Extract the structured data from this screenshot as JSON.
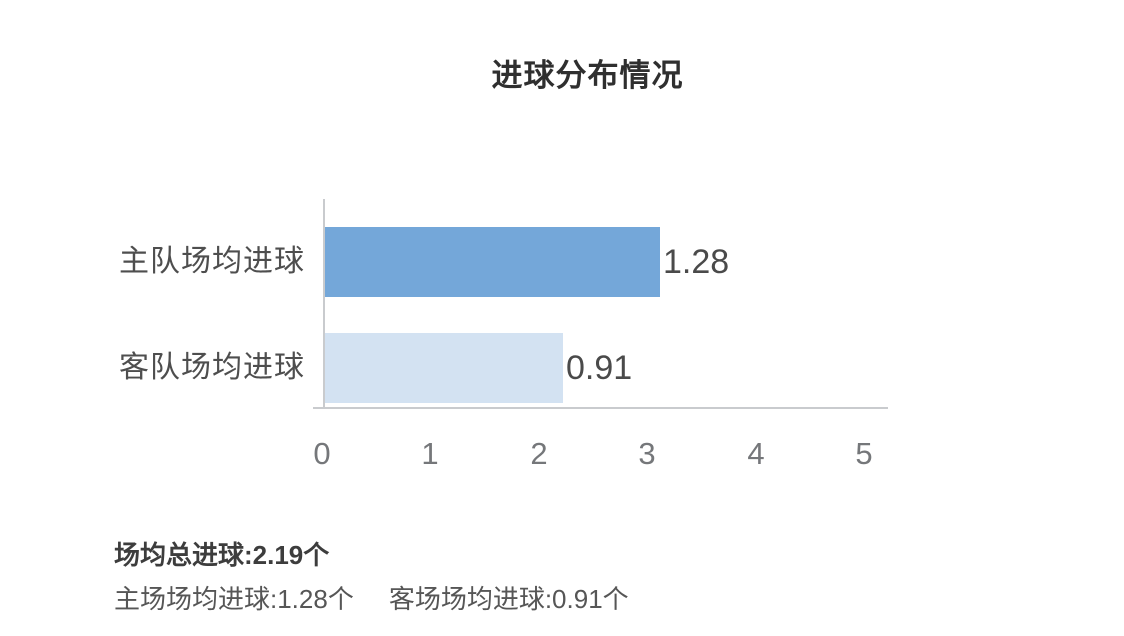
{
  "title": "进球分布情况",
  "chart_data": {
    "type": "bar",
    "orientation": "horizontal",
    "title": "进球分布情况",
    "categories": [
      "主队场均进球",
      "客队场均进球"
    ],
    "values": [
      1.28,
      0.91
    ],
    "value_labels": [
      "1.28",
      "0.91"
    ],
    "series_name": "场均进球",
    "xticks": [
      "0",
      "1",
      "2",
      "3",
      "4",
      "5"
    ],
    "xlim": [
      0,
      5
    ],
    "grid": false,
    "legend_position": "none",
    "bar_colors": [
      "#74a7d9",
      "#d3e2f2"
    ],
    "axis_color": "#c9cbce"
  },
  "summary": {
    "total": "场均总进球:2.19个",
    "home": "主场场均进球:1.28个",
    "away": "客场场均进球:0.91个"
  },
  "colors": {
    "bar_home": "#74a7d9",
    "bar_away": "#d3e2f2",
    "title_text": "#2f2f2f",
    "label_text": "#4e4e4e",
    "value_text": "#4a4a4a",
    "tick_text": "#75777a",
    "axis_line": "#c9cbce"
  }
}
